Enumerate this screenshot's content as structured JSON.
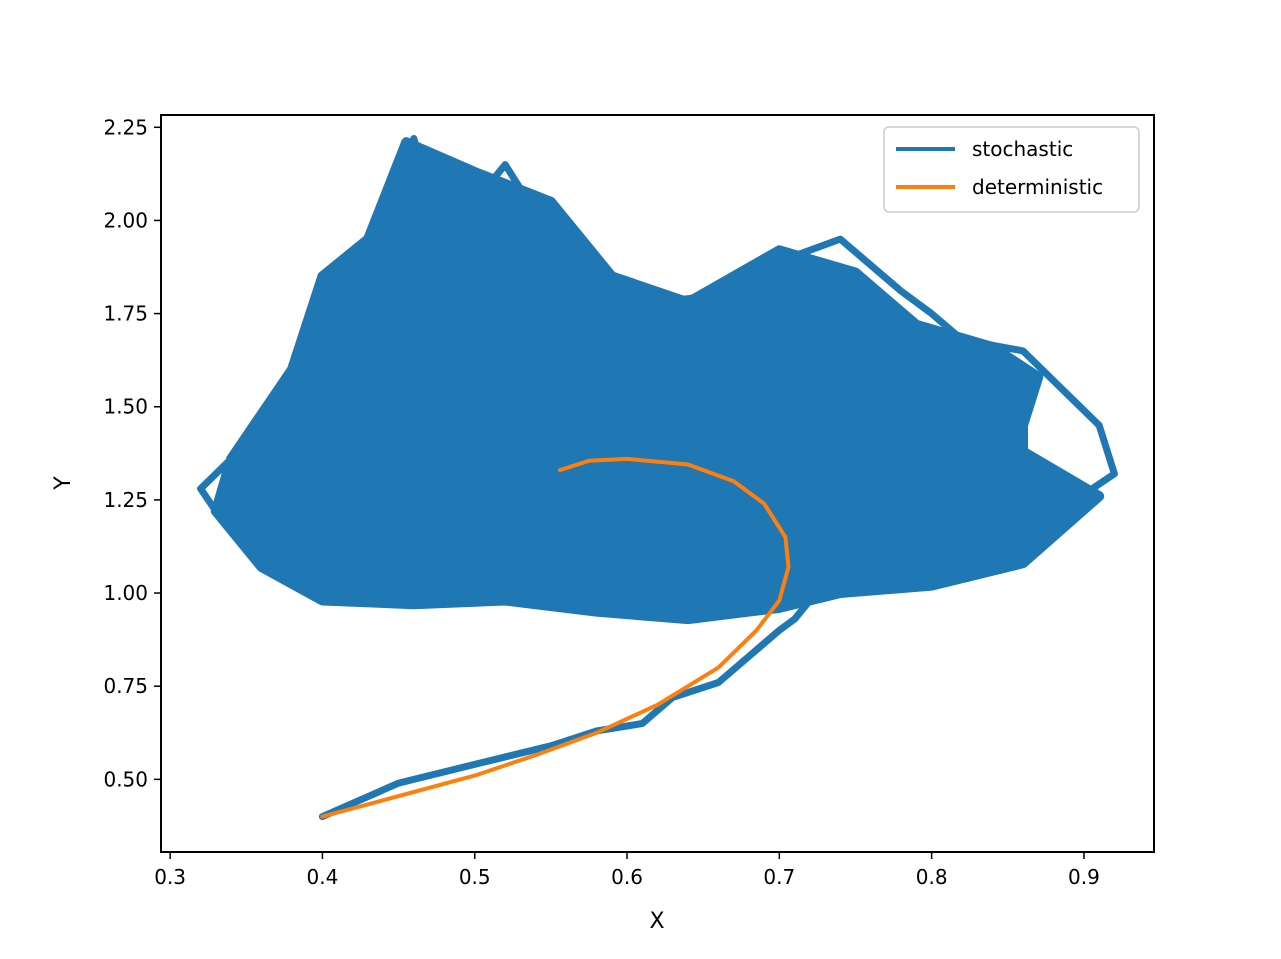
{
  "chart_data": {
    "type": "line",
    "title": "",
    "xlabel": "X",
    "ylabel": "Y",
    "xlim": [
      0.294,
      0.946
    ],
    "ylim": [
      0.305,
      2.283
    ],
    "xticks": [
      0.3,
      0.4,
      0.5,
      0.6,
      0.7,
      0.8,
      0.9
    ],
    "xtick_labels": [
      "0.3",
      "0.4",
      "0.5",
      "0.6",
      "0.7",
      "0.8",
      "0.9"
    ],
    "yticks": [
      0.5,
      0.75,
      1.0,
      1.25,
      1.5,
      1.75,
      2.0,
      2.25
    ],
    "ytick_labels": [
      "0.50",
      "0.75",
      "1.00",
      "1.25",
      "1.50",
      "1.75",
      "2.00",
      "2.25"
    ],
    "grid": false,
    "legend_position": "top-right",
    "series": [
      {
        "name": "stochastic",
        "color": "#1f77b4",
        "x": [
          0.4,
          0.45,
          0.5,
          0.55,
          0.58,
          0.61,
          0.63,
          0.66,
          0.68,
          0.7,
          0.71,
          0.72,
          0.7,
          0.65,
          0.58,
          0.52,
          0.45,
          0.4,
          0.36,
          0.33,
          0.32,
          0.35,
          0.38,
          0.42,
          0.45,
          0.46,
          0.48,
          0.52,
          0.54,
          0.58,
          0.62,
          0.66,
          0.7,
          0.74,
          0.78,
          0.8,
          0.82,
          0.86,
          0.91,
          0.92,
          0.88,
          0.85,
          0.8,
          0.75,
          0.7,
          0.65,
          0.6,
          0.56,
          0.55,
          0.52,
          0.48,
          0.44,
          0.4,
          0.37
        ],
        "y": [
          0.4,
          0.49,
          0.54,
          0.59,
          0.63,
          0.65,
          0.72,
          0.76,
          0.83,
          0.9,
          0.93,
          0.98,
          1.03,
          0.98,
          0.95,
          0.98,
          0.99,
          1.02,
          1.12,
          1.22,
          1.28,
          1.4,
          1.58,
          1.88,
          2.1,
          2.22,
          1.95,
          2.15,
          2.02,
          1.74,
          1.78,
          1.8,
          1.89,
          1.95,
          1.81,
          1.75,
          1.68,
          1.65,
          1.45,
          1.32,
          1.21,
          1.38,
          1.3,
          1.06,
          1.14,
          1.05,
          1.1,
          1.16,
          1.34,
          1.32,
          1.28,
          1.2,
          1.15,
          1.3
        ]
      },
      {
        "name": "deterministic",
        "color": "#ff7f0e",
        "x": [
          0.4,
          0.45,
          0.5,
          0.54,
          0.58,
          0.62,
          0.66,
          0.685,
          0.7,
          0.706,
          0.704,
          0.69,
          0.67,
          0.64,
          0.6,
          0.575,
          0.556
        ],
        "y": [
          0.4,
          0.455,
          0.51,
          0.565,
          0.625,
          0.7,
          0.8,
          0.9,
          0.98,
          1.07,
          1.15,
          1.24,
          1.3,
          1.345,
          1.36,
          1.355,
          1.33
        ]
      }
    ]
  }
}
